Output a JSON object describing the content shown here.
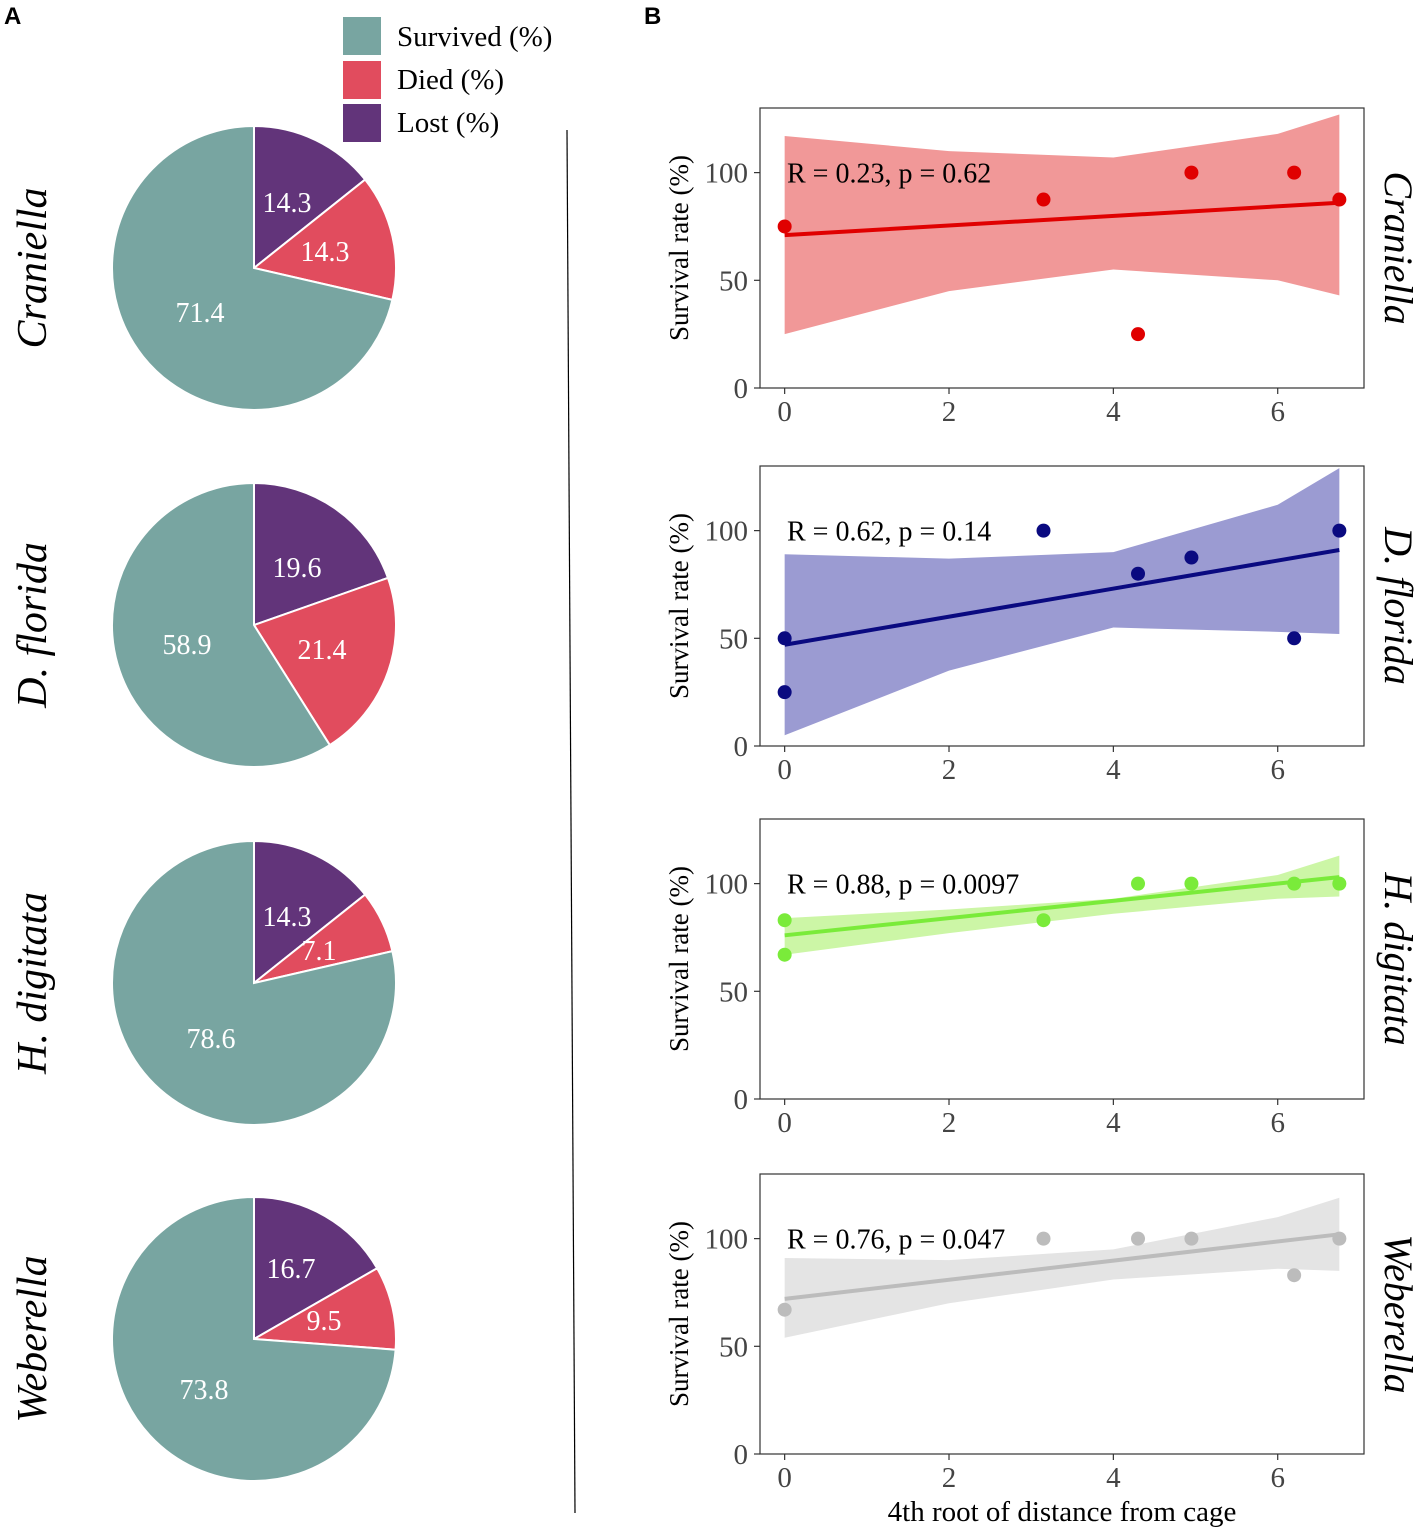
{
  "panel_a_label": "A",
  "panel_b_label": "B",
  "colors": {
    "survived": "#78a5a1",
    "died": "#e14c5e",
    "lost": "#62347a"
  },
  "legend": {
    "survived": "Survived (%)",
    "died": "Died (%)",
    "lost": "Lost (%)"
  },
  "species": [
    "Craniella",
    "D. florida",
    "H. digitata",
    "Weberella"
  ],
  "chart_data": [
    {
      "type": "pie",
      "panel": "A",
      "species": "Craniella",
      "slices": [
        {
          "category": "Lost (%)",
          "value": 14.3,
          "label": "14.3"
        },
        {
          "category": "Died (%)",
          "value": 14.3,
          "label": "14.3"
        },
        {
          "category": "Survived (%)",
          "value": 71.4,
          "label": "71.4"
        }
      ]
    },
    {
      "type": "pie",
      "panel": "A",
      "species": "D. florida",
      "slices": [
        {
          "category": "Lost (%)",
          "value": 19.6,
          "label": "19.6"
        },
        {
          "category": "Died (%)",
          "value": 21.4,
          "label": "21.4"
        },
        {
          "category": "Survived (%)",
          "value": 58.9,
          "label": "58.9"
        }
      ]
    },
    {
      "type": "pie",
      "panel": "A",
      "species": "H. digitata",
      "slices": [
        {
          "category": "Lost (%)",
          "value": 14.3,
          "label": "14.3"
        },
        {
          "category": "Died (%)",
          "value": 7.1,
          "label": "7.1"
        },
        {
          "category": "Survived (%)",
          "value": 78.6,
          "label": "78.6"
        }
      ]
    },
    {
      "type": "pie",
      "panel": "A",
      "species": "Weberella",
      "slices": [
        {
          "category": "Lost (%)",
          "value": 16.7,
          "label": "16.7"
        },
        {
          "category": "Died (%)",
          "value": 9.5,
          "label": "9.5"
        },
        {
          "category": "Survived (%)",
          "value": 73.8,
          "label": "73.8"
        }
      ]
    },
    {
      "type": "scatter",
      "panel": "B",
      "species": "Craniella",
      "annotation": "R = 0.23, p = 0.62",
      "color": "#e00000",
      "band_color": "#f19898",
      "x": [
        0,
        3.15,
        4.3,
        4.95,
        6.2,
        6.75
      ],
      "y": [
        75,
        87.5,
        25,
        100,
        100,
        87.5
      ],
      "fit": {
        "x": [
          0,
          6.75
        ],
        "y": [
          71,
          86
        ]
      },
      "band_upper": [
        [
          0,
          117
        ],
        [
          2,
          110
        ],
        [
          4,
          107
        ],
        [
          6,
          118
        ],
        [
          6.75,
          127
        ]
      ],
      "band_lower": [
        [
          0,
          25
        ],
        [
          2,
          45
        ],
        [
          4,
          55
        ],
        [
          6,
          50
        ],
        [
          6.75,
          43
        ]
      ],
      "xlabel": "",
      "ylabel": "Survival rate (%)",
      "xlim": [
        -0.3,
        7.05
      ],
      "ylim": [
        0,
        130
      ],
      "xticks": [
        "0",
        "2",
        "4",
        "6"
      ],
      "yticks": [
        "0",
        "50",
        "100"
      ]
    },
    {
      "type": "scatter",
      "panel": "B",
      "species": "D. florida",
      "annotation": "R = 0.62, p = 0.14",
      "color": "#0a0a80",
      "band_color": "#9b9bd2",
      "x": [
        0,
        0,
        3.15,
        4.3,
        4.95,
        6.2,
        6.75
      ],
      "y": [
        50,
        25,
        100,
        80,
        87.5,
        50,
        100
      ],
      "fit": {
        "x": [
          0,
          6.75
        ],
        "y": [
          47,
          91
        ]
      },
      "band_upper": [
        [
          0,
          89
        ],
        [
          2,
          87
        ],
        [
          4,
          90
        ],
        [
          6,
          112
        ],
        [
          6.75,
          129
        ]
      ],
      "band_lower": [
        [
          0,
          5
        ],
        [
          2,
          35
        ],
        [
          4,
          55
        ],
        [
          6,
          53
        ],
        [
          6.75,
          52
        ]
      ],
      "xlabel": "",
      "ylabel": "Survival rate (%)",
      "xlim": [
        -0.3,
        7.05
      ],
      "ylim": [
        0,
        130
      ],
      "xticks": [
        "0",
        "2",
        "4",
        "6"
      ],
      "yticks": [
        "0",
        "50",
        "100"
      ]
    },
    {
      "type": "scatter",
      "panel": "B",
      "species": "H. digitata",
      "annotation": "R = 0.88, p = 0.0097",
      "color": "#7aeb3a",
      "band_color": "#ccf6a6",
      "x": [
        0,
        0,
        3.15,
        4.3,
        4.95,
        6.2,
        6.75
      ],
      "y": [
        83,
        67,
        83,
        100,
        100,
        100,
        100
      ],
      "fit": {
        "x": [
          0,
          6.75
        ],
        "y": [
          76,
          103
        ]
      },
      "band_upper": [
        [
          0,
          84
        ],
        [
          2,
          88
        ],
        [
          4,
          93
        ],
        [
          6,
          104
        ],
        [
          6.75,
          113
        ]
      ],
      "band_lower": [
        [
          0,
          67
        ],
        [
          2,
          77
        ],
        [
          4,
          86
        ],
        [
          6,
          93
        ],
        [
          6.75,
          94
        ]
      ],
      "xlabel": "",
      "ylabel": "Survival rate (%)",
      "xlim": [
        -0.3,
        7.05
      ],
      "ylim": [
        0,
        130
      ],
      "xticks": [
        "0",
        "2",
        "4",
        "6"
      ],
      "yticks": [
        "0",
        "50",
        "100"
      ]
    },
    {
      "type": "scatter",
      "panel": "B",
      "species": "Weberella",
      "annotation": "R = 0.76, p = 0.047",
      "color": "#bcbcbc",
      "band_color": "#e4e4e4",
      "x": [
        0,
        3.15,
        4.3,
        4.95,
        6.2,
        6.75
      ],
      "y": [
        67,
        100,
        100,
        100,
        83,
        100
      ],
      "fit": {
        "x": [
          0,
          6.75
        ],
        "y": [
          72,
          102
        ]
      },
      "band_upper": [
        [
          0,
          91
        ],
        [
          2,
          90
        ],
        [
          4,
          95
        ],
        [
          6,
          110
        ],
        [
          6.75,
          119
        ]
      ],
      "band_lower": [
        [
          0,
          54
        ],
        [
          2,
          70
        ],
        [
          4,
          81
        ],
        [
          6,
          86
        ],
        [
          6.75,
          85
        ]
      ],
      "xlabel": "4th root of distance from cage",
      "ylabel": "Survival rate (%)",
      "xlim": [
        -0.3,
        7.05
      ],
      "ylim": [
        0,
        130
      ],
      "xticks": [
        "0",
        "2",
        "4",
        "6"
      ],
      "yticks": [
        "0",
        "50",
        "100"
      ]
    }
  ]
}
